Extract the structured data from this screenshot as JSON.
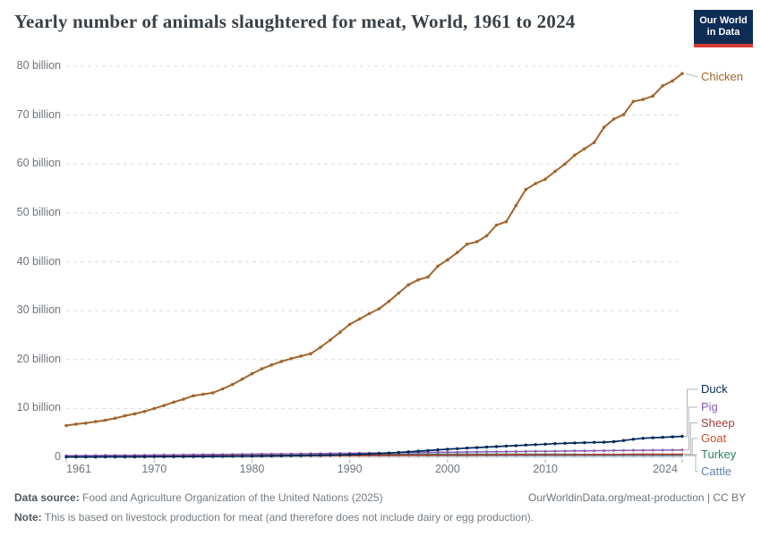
{
  "header": {
    "title": "Yearly number of animals slaughtered for meat, World, 1961 to 2024",
    "logo": {
      "line1": "Our World",
      "line2": "in Data"
    }
  },
  "footer": {
    "source_label": "Data source:",
    "source_text": " Food and Agriculture Organization of the United Nations (2025)",
    "link_text": "OurWorldinData.org/meat-production | CC BY",
    "note_label": "Note:",
    "note_text": " This is based on livestock production for meat (and therefore does not include dairy or egg production)."
  },
  "chart_data": {
    "type": "line",
    "title": "Yearly number of animals slaughtered for meat, World, 1961 to 2024",
    "unit": "animals per year",
    "ylim": [
      0,
      80
    ],
    "yticks": [
      0,
      10,
      20,
      30,
      40,
      50,
      60,
      70,
      80
    ],
    "ytick_labels": [
      "0",
      "10 billion",
      "20 billion",
      "30 billion",
      "40 billion",
      "50 billion",
      "60 billion",
      "70 billion",
      "80 billion"
    ],
    "xticks": [
      1961,
      1970,
      1980,
      1990,
      2000,
      2010,
      2024
    ],
    "xtick_labels": [
      "1961",
      "1970",
      "1980",
      "1990",
      "2000",
      "2010",
      "2024"
    ],
    "grid": "horizontal-dashed",
    "legend_position": "right-of-line",
    "x": [
      1961,
      1962,
      1963,
      1964,
      1965,
      1966,
      1967,
      1968,
      1969,
      1970,
      1971,
      1972,
      1973,
      1974,
      1975,
      1976,
      1977,
      1978,
      1979,
      1980,
      1981,
      1982,
      1983,
      1984,
      1985,
      1986,
      1987,
      1988,
      1989,
      1990,
      1991,
      1992,
      1993,
      1994,
      1995,
      1996,
      1997,
      1998,
      1999,
      2000,
      2001,
      2002,
      2003,
      2004,
      2005,
      2006,
      2007,
      2008,
      2009,
      2010,
      2011,
      2012,
      2013,
      2014,
      2015,
      2016,
      2017,
      2018,
      2019,
      2020,
      2021,
      2022,
      2023,
      2024
    ],
    "series": [
      {
        "name": "Chicken",
        "color": "#A1662C",
        "unit": "billion",
        "values": [
          6.5,
          6.8,
          7.0,
          7.3,
          7.6,
          8.0,
          8.5,
          8.9,
          9.4,
          10.0,
          10.6,
          11.3,
          11.9,
          12.6,
          12.9,
          13.2,
          14.0,
          14.9,
          16.0,
          17.1,
          18.1,
          18.9,
          19.6,
          20.2,
          20.7,
          21.2,
          22.5,
          24.0,
          25.6,
          27.2,
          28.3,
          29.4,
          30.4,
          31.9,
          33.6,
          35.3,
          36.3,
          36.9,
          39.1,
          40.4,
          41.9,
          43.6,
          44.1,
          45.3,
          47.5,
          48.2,
          51.5,
          54.8,
          56.0,
          56.9,
          58.5,
          60.0,
          61.8,
          63.1,
          64.4,
          67.5,
          69.2,
          70.1,
          72.8,
          73.2,
          73.9,
          76.0,
          77.0,
          78.5
        ]
      },
      {
        "name": "Duck",
        "color": "#00295B",
        "unit": "billion",
        "values": [
          0.07,
          0.07,
          0.08,
          0.08,
          0.09,
          0.09,
          0.1,
          0.1,
          0.11,
          0.12,
          0.13,
          0.14,
          0.15,
          0.16,
          0.17,
          0.18,
          0.2,
          0.22,
          0.24,
          0.26,
          0.28,
          0.3,
          0.32,
          0.34,
          0.37,
          0.4,
          0.44,
          0.48,
          0.52,
          0.57,
          0.63,
          0.7,
          0.78,
          0.88,
          1.0,
          1.13,
          1.26,
          1.4,
          1.53,
          1.66,
          1.78,
          1.9,
          2.0,
          2.1,
          2.2,
          2.3,
          2.4,
          2.5,
          2.6,
          2.7,
          2.8,
          2.88,
          2.95,
          3.0,
          3.05,
          3.1,
          3.2,
          3.45,
          3.7,
          3.9,
          4.0,
          4.1,
          4.2,
          4.3
        ]
      },
      {
        "name": "Pig",
        "color": "#8A5CB5",
        "unit": "billion",
        "values": [
          0.35,
          0.36,
          0.37,
          0.38,
          0.4,
          0.41,
          0.43,
          0.44,
          0.46,
          0.48,
          0.5,
          0.52,
          0.53,
          0.55,
          0.56,
          0.58,
          0.6,
          0.62,
          0.64,
          0.66,
          0.68,
          0.69,
          0.71,
          0.72,
          0.74,
          0.76,
          0.78,
          0.8,
          0.82,
          0.85,
          0.87,
          0.88,
          0.9,
          0.92,
          0.94,
          0.96,
          0.98,
          1.0,
          1.02,
          1.05,
          1.07,
          1.09,
          1.11,
          1.13,
          1.15,
          1.17,
          1.19,
          1.21,
          1.23,
          1.25,
          1.27,
          1.29,
          1.31,
          1.33,
          1.35,
          1.38,
          1.4,
          1.42,
          1.44,
          1.45,
          1.46,
          1.47,
          1.48,
          1.5
        ]
      },
      {
        "name": "Sheep",
        "color": "#A04038",
        "unit": "billion",
        "values": [
          0.33,
          0.33,
          0.34,
          0.34,
          0.35,
          0.35,
          0.36,
          0.36,
          0.37,
          0.37,
          0.38,
          0.38,
          0.39,
          0.39,
          0.4,
          0.4,
          0.41,
          0.41,
          0.42,
          0.42,
          0.43,
          0.43,
          0.44,
          0.44,
          0.45,
          0.45,
          0.46,
          0.46,
          0.47,
          0.47,
          0.48,
          0.48,
          0.49,
          0.49,
          0.5,
          0.5,
          0.51,
          0.51,
          0.52,
          0.52,
          0.53,
          0.53,
          0.54,
          0.54,
          0.55,
          0.55,
          0.56,
          0.56,
          0.57,
          0.57,
          0.58,
          0.58,
          0.59,
          0.6,
          0.61,
          0.62,
          0.63,
          0.64,
          0.65,
          0.66,
          0.66,
          0.67,
          0.67,
          0.68
        ]
      },
      {
        "name": "Goat",
        "color": "#C8512F",
        "unit": "billion",
        "values": [
          0.12,
          0.13,
          0.13,
          0.14,
          0.14,
          0.15,
          0.15,
          0.16,
          0.16,
          0.17,
          0.17,
          0.18,
          0.18,
          0.19,
          0.2,
          0.2,
          0.21,
          0.22,
          0.22,
          0.23,
          0.24,
          0.25,
          0.26,
          0.27,
          0.28,
          0.29,
          0.3,
          0.31,
          0.32,
          0.33,
          0.34,
          0.35,
          0.36,
          0.37,
          0.38,
          0.39,
          0.4,
          0.41,
          0.42,
          0.43,
          0.44,
          0.44,
          0.45,
          0.46,
          0.47,
          0.48,
          0.48,
          0.49,
          0.5,
          0.5,
          0.51,
          0.52,
          0.52,
          0.53,
          0.54,
          0.54,
          0.55,
          0.56,
          0.56,
          0.57,
          0.57,
          0.58,
          0.58,
          0.58
        ]
      },
      {
        "name": "Turkey",
        "color": "#2C8465",
        "unit": "billion",
        "values": [
          0.14,
          0.15,
          0.15,
          0.16,
          0.17,
          0.18,
          0.19,
          0.2,
          0.21,
          0.22,
          0.23,
          0.24,
          0.25,
          0.26,
          0.27,
          0.28,
          0.3,
          0.31,
          0.33,
          0.35,
          0.37,
          0.39,
          0.41,
          0.43,
          0.45,
          0.47,
          0.5,
          0.52,
          0.54,
          0.56,
          0.58,
          0.6,
          0.61,
          0.62,
          0.63,
          0.64,
          0.65,
          0.66,
          0.66,
          0.67,
          0.67,
          0.67,
          0.68,
          0.68,
          0.68,
          0.68,
          0.68,
          0.68,
          0.67,
          0.66,
          0.65,
          0.64,
          0.64,
          0.63,
          0.62,
          0.62,
          0.61,
          0.6,
          0.59,
          0.58,
          0.57,
          0.56,
          0.55,
          0.55
        ]
      },
      {
        "name": "Cattle",
        "color": "#6083A8",
        "unit": "billion",
        "values": [
          0.17,
          0.17,
          0.18,
          0.18,
          0.19,
          0.19,
          0.2,
          0.2,
          0.21,
          0.21,
          0.22,
          0.22,
          0.23,
          0.23,
          0.24,
          0.24,
          0.25,
          0.25,
          0.26,
          0.26,
          0.26,
          0.27,
          0.27,
          0.27,
          0.28,
          0.28,
          0.28,
          0.29,
          0.29,
          0.29,
          0.3,
          0.3,
          0.3,
          0.3,
          0.31,
          0.31,
          0.31,
          0.31,
          0.32,
          0.32,
          0.32,
          0.32,
          0.33,
          0.33,
          0.33,
          0.33,
          0.33,
          0.34,
          0.34,
          0.34,
          0.34,
          0.34,
          0.34,
          0.35,
          0.35,
          0.35,
          0.35,
          0.35,
          0.35,
          0.35,
          0.35,
          0.35,
          0.35,
          0.35
        ]
      }
    ]
  }
}
